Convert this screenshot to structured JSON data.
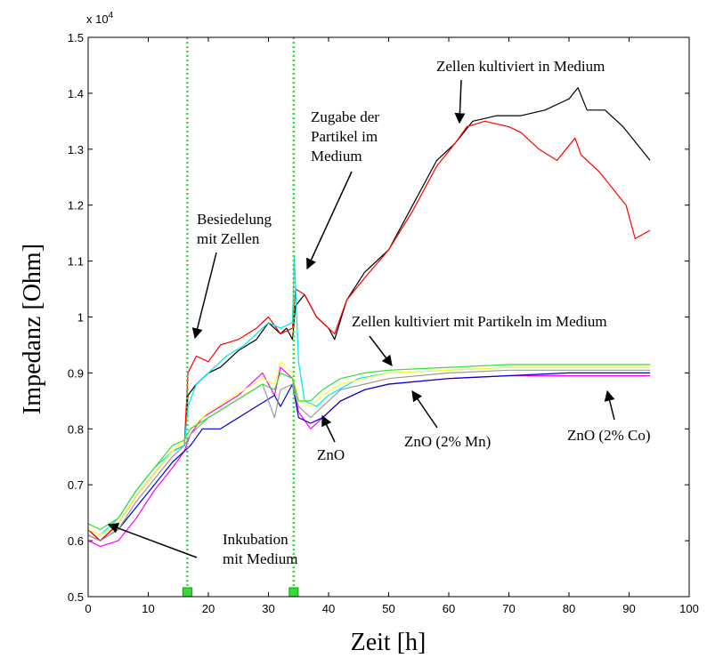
{
  "chart_data": {
    "type": "line",
    "xlabel": "Zeit [h]",
    "ylabel": "Impedanz [Ohm]",
    "y_multiplier_label": "x 10",
    "y_multiplier_exponent": "4",
    "xlim": [
      0,
      100
    ],
    "ylim": [
      0.5,
      1.5
    ],
    "x_ticks": [
      "0",
      "10",
      "20",
      "30",
      "40",
      "50",
      "60",
      "70",
      "80",
      "90",
      "100"
    ],
    "y_ticks": [
      "0.5",
      "0.6",
      "0.7",
      "0.8",
      "0.9",
      "1",
      "1.1",
      "1.2",
      "1.3",
      "1.4",
      "1.5"
    ],
    "grid": false,
    "vertical_markers": [
      16.5,
      34.2
    ],
    "marker_color": "#33dd33",
    "annotations": [
      {
        "lines": [
          "Zellen kultiviert in Medium"
        ],
        "text_x": 0,
        "text_y": 0
      },
      {
        "lines": [
          "Zugabe der",
          "Partikel im",
          "Medium"
        ]
      },
      {
        "lines": [
          "Besiedelung",
          "mit Zellen"
        ]
      },
      {
        "lines": [
          "Zellen kultiviert mit Partikeln im Medium"
        ]
      },
      {
        "lines": [
          "ZnO"
        ]
      },
      {
        "lines": [
          "ZnO (2% Mn)"
        ]
      },
      {
        "lines": [
          "ZnO (2% Co)"
        ]
      },
      {
        "lines": [
          "Inkubation",
          "mit Medium"
        ]
      }
    ],
    "series": [
      {
        "color": "#000000",
        "points": [
          [
            0,
            0.62
          ],
          [
            2,
            0.6
          ],
          [
            5,
            0.63
          ],
          [
            8,
            0.68
          ],
          [
            11,
            0.72
          ],
          [
            14,
            0.76
          ],
          [
            16,
            0.77
          ],
          [
            16.6,
            0.86
          ],
          [
            18,
            0.88
          ],
          [
            20,
            0.9
          ],
          [
            22,
            0.91
          ],
          [
            25,
            0.94
          ],
          [
            28,
            0.96
          ],
          [
            30,
            0.99
          ],
          [
            32,
            0.97
          ],
          [
            33,
            0.98
          ],
          [
            34,
            0.96
          ],
          [
            34.5,
            1.02
          ],
          [
            36,
            1.04
          ],
          [
            38,
            1.0
          ],
          [
            40,
            0.98
          ],
          [
            41,
            0.96
          ],
          [
            43,
            1.03
          ],
          [
            46,
            1.08
          ],
          [
            50,
            1.12
          ],
          [
            54,
            1.2
          ],
          [
            58,
            1.28
          ],
          [
            61,
            1.31
          ],
          [
            64,
            1.35
          ],
          [
            68,
            1.36
          ],
          [
            72,
            1.36
          ],
          [
            76,
            1.37
          ],
          [
            80,
            1.39
          ],
          [
            81.5,
            1.41
          ],
          [
            83,
            1.37
          ],
          [
            86,
            1.37
          ],
          [
            89,
            1.34
          ],
          [
            92,
            1.3
          ],
          [
            93.5,
            1.28
          ]
        ]
      },
      {
        "color": "#ff0000",
        "points": [
          [
            0,
            0.62
          ],
          [
            2,
            0.6
          ],
          [
            5,
            0.63
          ],
          [
            8,
            0.68
          ],
          [
            11,
            0.72
          ],
          [
            14,
            0.76
          ],
          [
            16,
            0.77
          ],
          [
            16.6,
            0.9
          ],
          [
            18,
            0.93
          ],
          [
            20,
            0.92
          ],
          [
            22,
            0.95
          ],
          [
            25,
            0.96
          ],
          [
            28,
            0.98
          ],
          [
            30,
            1.0
          ],
          [
            32,
            0.97
          ],
          [
            34,
            0.98
          ],
          [
            34.5,
            1.05
          ],
          [
            36,
            1.04
          ],
          [
            38,
            1.0
          ],
          [
            40,
            0.98
          ],
          [
            41,
            0.97
          ],
          [
            43,
            1.03
          ],
          [
            46,
            1.07
          ],
          [
            50,
            1.12
          ],
          [
            54,
            1.19
          ],
          [
            58,
            1.27
          ],
          [
            61,
            1.31
          ],
          [
            63,
            1.34
          ],
          [
            66,
            1.35
          ],
          [
            70,
            1.34
          ],
          [
            72,
            1.33
          ],
          [
            75,
            1.3
          ],
          [
            78,
            1.28
          ],
          [
            81,
            1.32
          ],
          [
            82,
            1.29
          ],
          [
            85,
            1.26
          ],
          [
            88,
            1.22
          ],
          [
            89.5,
            1.2
          ],
          [
            91,
            1.14
          ],
          [
            93.5,
            1.155
          ]
        ]
      },
      {
        "color": "#00e5ee",
        "points": [
          [
            0,
            0.62
          ],
          [
            2,
            0.61
          ],
          [
            5,
            0.64
          ],
          [
            8,
            0.69
          ],
          [
            11,
            0.73
          ],
          [
            14,
            0.76
          ],
          [
            16,
            0.77
          ],
          [
            16.6,
            0.84
          ],
          [
            18,
            0.88
          ],
          [
            20,
            0.9
          ],
          [
            23,
            0.93
          ],
          [
            26,
            0.95
          ],
          [
            28,
            0.97
          ],
          [
            30,
            0.99
          ],
          [
            32,
            0.98
          ],
          [
            34,
            0.99
          ],
          [
            34.3,
            1.11
          ],
          [
            35,
            0.92
          ],
          [
            36,
            0.85
          ],
          [
            38,
            0.84
          ],
          [
            40,
            0.86
          ],
          [
            45,
            0.89
          ],
          [
            50,
            0.9
          ],
          [
            60,
            0.905
          ],
          [
            70,
            0.91
          ],
          [
            80,
            0.91
          ],
          [
            93.5,
            0.91
          ]
        ]
      },
      {
        "color": "#ff00ff",
        "points": [
          [
            0,
            0.6
          ],
          [
            2,
            0.59
          ],
          [
            5,
            0.6
          ],
          [
            8,
            0.64
          ],
          [
            11,
            0.69
          ],
          [
            14,
            0.73
          ],
          [
            16,
            0.76
          ],
          [
            17,
            0.79
          ],
          [
            19,
            0.82
          ],
          [
            22,
            0.84
          ],
          [
            25,
            0.86
          ],
          [
            27,
            0.88
          ],
          [
            29,
            0.9
          ],
          [
            31,
            0.86
          ],
          [
            32,
            0.91
          ],
          [
            34,
            0.89
          ],
          [
            35,
            0.83
          ],
          [
            37,
            0.8
          ],
          [
            39,
            0.82
          ],
          [
            42,
            0.85
          ],
          [
            46,
            0.87
          ],
          [
            50,
            0.88
          ],
          [
            60,
            0.89
          ],
          [
            70,
            0.895
          ],
          [
            80,
            0.895
          ],
          [
            93.5,
            0.895
          ]
        ]
      },
      {
        "color": "#0000cc",
        "points": [
          [
            0,
            0.61
          ],
          [
            2,
            0.6
          ],
          [
            5,
            0.62
          ],
          [
            8,
            0.66
          ],
          [
            11,
            0.7
          ],
          [
            14,
            0.74
          ],
          [
            16,
            0.76
          ],
          [
            17,
            0.77
          ],
          [
            19,
            0.8
          ],
          [
            22,
            0.8
          ],
          [
            25,
            0.82
          ],
          [
            28,
            0.84
          ],
          [
            31,
            0.86
          ],
          [
            32,
            0.84
          ],
          [
            34,
            0.88
          ],
          [
            35,
            0.82
          ],
          [
            37,
            0.81
          ],
          [
            39,
            0.82
          ],
          [
            42,
            0.85
          ],
          [
            46,
            0.87
          ],
          [
            50,
            0.88
          ],
          [
            60,
            0.89
          ],
          [
            70,
            0.895
          ],
          [
            80,
            0.9
          ],
          [
            93.5,
            0.9
          ]
        ]
      },
      {
        "color": "#999999",
        "points": [
          [
            0,
            0.61
          ],
          [
            2,
            0.6
          ],
          [
            5,
            0.62
          ],
          [
            8,
            0.67
          ],
          [
            11,
            0.71
          ],
          [
            14,
            0.75
          ],
          [
            16,
            0.77
          ],
          [
            17,
            0.79
          ],
          [
            20,
            0.82
          ],
          [
            23,
            0.84
          ],
          [
            26,
            0.86
          ],
          [
            29,
            0.88
          ],
          [
            31,
            0.82
          ],
          [
            32,
            0.87
          ],
          [
            34,
            0.88
          ],
          [
            35,
            0.84
          ],
          [
            37,
            0.82
          ],
          [
            39,
            0.84
          ],
          [
            42,
            0.87
          ],
          [
            46,
            0.88
          ],
          [
            50,
            0.89
          ],
          [
            60,
            0.9
          ],
          [
            70,
            0.905
          ],
          [
            80,
            0.905
          ],
          [
            93.5,
            0.905
          ]
        ]
      },
      {
        "color": "#ffff33",
        "points": [
          [
            0,
            0.62
          ],
          [
            2,
            0.61
          ],
          [
            5,
            0.63
          ],
          [
            8,
            0.68
          ],
          [
            11,
            0.72
          ],
          [
            14,
            0.76
          ],
          [
            16,
            0.78
          ],
          [
            17,
            0.8
          ],
          [
            20,
            0.83
          ],
          [
            23,
            0.85
          ],
          [
            26,
            0.87
          ],
          [
            29,
            0.89
          ],
          [
            31,
            0.88
          ],
          [
            32,
            0.92
          ],
          [
            34,
            0.9
          ],
          [
            35,
            0.85
          ],
          [
            37,
            0.84
          ],
          [
            39,
            0.86
          ],
          [
            42,
            0.88
          ],
          [
            46,
            0.89
          ],
          [
            50,
            0.9
          ],
          [
            60,
            0.905
          ],
          [
            70,
            0.91
          ],
          [
            80,
            0.91
          ],
          [
            93.5,
            0.91
          ]
        ]
      },
      {
        "color": "#33dd33",
        "points": [
          [
            0,
            0.63
          ],
          [
            2,
            0.62
          ],
          [
            5,
            0.64
          ],
          [
            8,
            0.69
          ],
          [
            11,
            0.73
          ],
          [
            14,
            0.77
          ],
          [
            16,
            0.78
          ],
          [
            17,
            0.8
          ],
          [
            20,
            0.82
          ],
          [
            23,
            0.84
          ],
          [
            26,
            0.86
          ],
          [
            29,
            0.88
          ],
          [
            31,
            0.87
          ],
          [
            32,
            0.9
          ],
          [
            34,
            0.89
          ],
          [
            35,
            0.85
          ],
          [
            37,
            0.85
          ],
          [
            39,
            0.87
          ],
          [
            42,
            0.89
          ],
          [
            46,
            0.9
          ],
          [
            50,
            0.905
          ],
          [
            60,
            0.91
          ],
          [
            70,
            0.915
          ],
          [
            80,
            0.915
          ],
          [
            93.5,
            0.915
          ]
        ]
      }
    ]
  }
}
